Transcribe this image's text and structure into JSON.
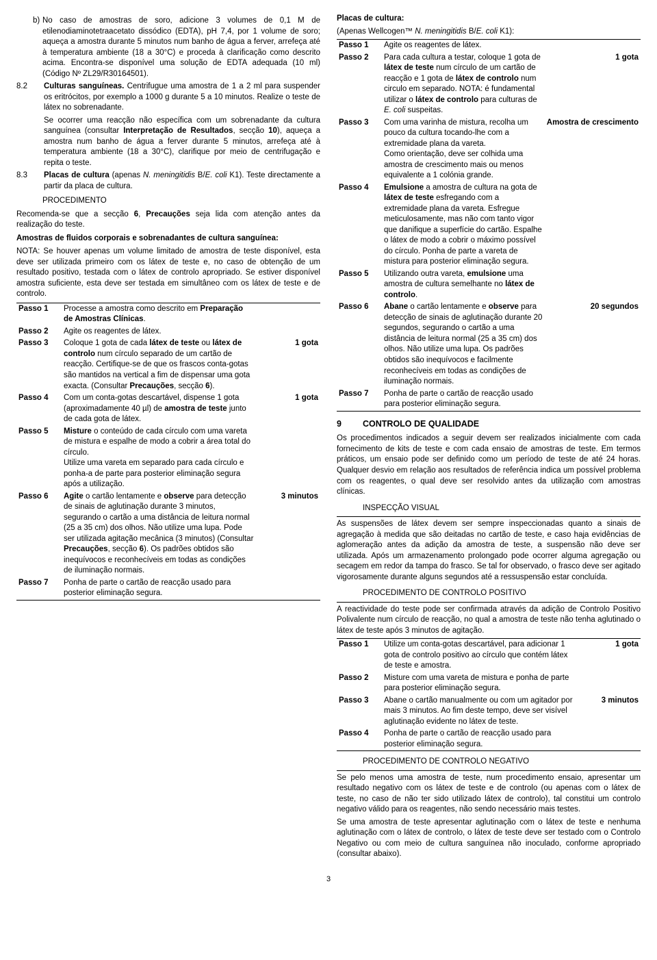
{
  "leftCol": {
    "itemB": {
      "letter": "b)",
      "text": "No caso de amostras de soro, adicione 3 volumes de 0,1 M de etilenodiaminotetraacetato dissódico (EDTA), pH 7,4, por 1 volume de soro; aqueça a amostra durante 5 minutos num banho de água a ferver, arrefeça até à temperatura ambiente (18 a 30°C) e proceda à clarificação como descrito acima. Encontra-se disponível uma solução de EDTA adequada (10 ml) (Código Nº ZL29/R30164501)."
    },
    "s82": {
      "num": "8.2",
      "title": "Culturas sanguíneas.",
      "text": " Centrifugue uma amostra de 1 a 2 ml para suspender os eritrócitos, por exemplo a 1000 g durante 5 a 10 minutos. Realize o teste de látex no sobrenadante."
    },
    "s82p2": "Se ocorrer uma reacção não específica com um sobrenadante da cultura sanguínea (consultar Interpretação de Resultados, secção 10), aqueça a amostra num banho de água a ferver durante 5 minutos, arrefeça até à temperatura ambiente (18 a 30°C), clarifique por meio de centrifugação e repita o teste.",
    "s82p2bold1": "Interpretação de Resultados",
    "s82p2bold2": "10",
    "s83": {
      "num": "8.3",
      "pre": "Placas de cultura",
      "mid": " (apenas ",
      "ital": "N. meningitidis",
      "midB": " B/",
      "ital2": "E. coli",
      "post": " K1). Teste directamente a partir da placa de cultura."
    },
    "proc": "PROCEDIMENTO",
    "recom": "Recomenda-se que a secção 6, Precauções seja lida com atenção antes da realização do teste.",
    "recomB1": "6",
    "recomB2": "Precauções",
    "amostrasHead": "Amostras de fluidos corporais e sobrenadantes de cultura sanguínea:",
    "nota": "NOTA: Se houver apenas um volume limitado de amostra de teste disponível, esta deve ser utilizada primeiro com os látex de teste e, no caso de obtenção de um resultado positivo, testada com o látex de controlo apropriado. Se estiver disponível amostra suficiente, esta deve ser testada em simultâneo com os látex de teste e de controlo.",
    "steps": [
      {
        "label": "Passo 1",
        "text": "Processe a amostra como descrito em ",
        "bold": "Preparação de Amostras Clínicas",
        "post": ".",
        "amount": ""
      },
      {
        "label": "Passo 2",
        "text": "Agite os reagentes de látex.",
        "amount": ""
      },
      {
        "label": "Passo 3",
        "pre": "Coloque 1 gota de cada ",
        "b1": "látex de teste",
        "mid": " ou ",
        "b2": "látex de controlo",
        "post": " num círculo separado de um cartão de reacção. Certifique-se de que os frascos conta-gotas são mantidos na vertical a fim de dispensar uma gota exacta. (Consultar ",
        "b3": "Precauções",
        "post2": ", secção ",
        "b4": "6",
        "post3": ").",
        "amount": "1 gota"
      },
      {
        "label": "Passo 4",
        "pre": "Com um conta-gotas descartável, dispense 1 gota (aproximadamente 40 µl) de ",
        "b1": "amostra de teste",
        "post": " junto de cada gota de látex.",
        "amount": "1 gota"
      },
      {
        "label": "Passo 5",
        "b1": "Misture",
        "post": " o conteúdo de cada círculo com uma vareta de mistura e espalhe de modo a cobrir a área total do círculo.",
        "line2": "Utilize uma vareta em separado para cada círculo e ponha-a de parte para posterior eliminação segura após a utilização.",
        "amount": ""
      },
      {
        "label": "Passo 6",
        "b1": "Agite",
        "mid": " o cartão lentamente e ",
        "b2": "observe",
        "post": " para detecção de sinais de aglutinação durante 3 minutos, segurando o cartão a uma distância de leitura normal (25 a 35 cm) dos olhos. Não utilize uma lupa. Pode ser utilizada agitação mecânica (3 minutos) (Consultar ",
        "b3": "Precauções",
        "post2": ", secção ",
        "b4": "6",
        "post3": "). Os padrões obtidos são inequívocos e reconhecíveis em todas as condições de iluminação normais.",
        "amount": "3 minutos"
      },
      {
        "label": "Passo 7",
        "text": "Ponha de parte o cartão de reacção usado para posterior eliminação segura.",
        "amount": ""
      }
    ]
  },
  "rightCol": {
    "placasHead": "Placas de cultura:",
    "apenas": "(Apenas Wellcogen™ ",
    "ital1": "N. meningitidis",
    "apMid": " B/",
    "ital2": "E. coli",
    "apEnd": " K1):",
    "steps": [
      {
        "label": "Passo 1",
        "text": "Agite os reagentes de látex.",
        "amount": ""
      },
      {
        "label": "Passo 2",
        "pre": "Para cada cultura a testar, coloque 1 gota de ",
        "b1": "látex de teste",
        "mid": " num círculo de um cartão de reacção e 1 gota de ",
        "b2": "látex de controlo",
        "post": " num circulo em separado. NOTA: é fundamental utilizar o ",
        "b3": "látex de controlo",
        "post2": " para culturas de ",
        "ital": "E. coli",
        "post3": " suspeitas.",
        "amount": "1 gota"
      },
      {
        "label": "Passo 3",
        "pre": "Com uma varinha de mistura, recolha um pouco da cultura tocando-lhe com a extremidade plana da vareta.",
        "line2": "Como orientação, deve ser colhida uma amostra de crescimento mais ou menos equivalente a 1 colónia grande.",
        "amount": "Amostra de crescimento"
      },
      {
        "label": "Passo 4",
        "b1": "Emulsione",
        "mid": " a amostra de cultura na gota de ",
        "b2": "látex de teste",
        "post": " esfregando com a extremidade plana da vareta. Esfregue meticulosamente, mas não com tanto vigor que danifique a superfície do cartão. Espalhe o látex de modo a cobrir o máximo possível do círculo. Ponha de parte a vareta de mistura para posterior eliminação segura.",
        "amount": ""
      },
      {
        "label": "Passo 5",
        "pre": "Utilizando outra vareta, ",
        "b1": "emulsione",
        "post": " uma amostra de cultura semelhante no ",
        "b2": "látex de controlo",
        "post2": ".",
        "amount": ""
      },
      {
        "label": "Passo 6",
        "b1": "Abane",
        "mid": " o cartão lentamente e ",
        "b2": "observe",
        "post": " para detecção de sinais de aglutinação durante 20 segundos, segurando o cartão a uma distância de leitura normal (25 a 35 cm) dos olhos. Não utilize uma lupa. Os padrões obtidos são inequívocos e facilmente reconhecíveis em todas as condições de iluminação normais.",
        "amount": "20 segundos"
      },
      {
        "label": "Passo 7",
        "text": "Ponha de parte o cartão de reacção usado para posterior eliminação segura.",
        "amount": ""
      }
    ],
    "h9": {
      "num": "9",
      "title": "CONTROLO DE QUALIDADE"
    },
    "h9p": "Os procedimentos indicados a seguir devem ser realizados inicialmente com cada fornecimento de kits de teste e com cada ensaio de amostras de teste. Em termos práticos, um ensaio pode ser definido como um período de teste de até 24 horas. Qualquer desvio em relação aos resultados de referência indica um possível problema com os reagentes, o qual deve ser resolvido antes da utilização com amostras clínicas.",
    "inspHead": "INSPECÇÃO VISUAL",
    "inspP": "As suspensões de látex devem ser sempre inspeccionadas quanto a sinais de agregação à medida que são deitadas no cartão de teste, e caso haja evidências de aglomeração antes da adição da amostra de teste, a suspensão não deve ser utilizada. Após um armazenamento prolongado pode ocorrer alguma agregação ou secagem em redor da tampa do frasco. Se tal for observado, o frasco deve ser agitado vigorosamente durante alguns segundos até a ressuspensão estar concluída.",
    "posHead": "PROCEDIMENTO DE CONTROLO POSITIVO",
    "posP": "A reactividade do teste pode ser confirmada através da adição de Controlo Positivo Polivalente num círculo de reacção, no qual a amostra de teste não tenha aglutinado o látex de teste após 3 minutos de agitação.",
    "posSteps": [
      {
        "label": "Passo 1",
        "text": "Utilize um conta-gotas descartável, para adicionar 1 gota de controlo positivo ao círculo que contém látex de teste e amostra.",
        "amount": "1 gota"
      },
      {
        "label": "Passo 2",
        "text": "Misture com uma vareta de mistura e ponha de parte para posterior eliminação segura.",
        "amount": ""
      },
      {
        "label": "Passo 3",
        "text": "Abane o cartão manualmente ou com um agitador por mais 3 minutos. Ao fim deste tempo, deve ser visível aglutinação evidente no látex de teste.",
        "amount": "3 minutos"
      },
      {
        "label": "Passo 4",
        "text": "Ponha de parte o cartão de reacção usado para posterior eliminação segura.",
        "amount": ""
      }
    ],
    "negHead": "PROCEDIMENTO DE CONTROLO NEGATIVO",
    "negP1": "Se pelo menos uma amostra de teste, num procedimento ensaio, apresentar um resultado negativo com os látex de teste e de controlo (ou apenas com o látex de teste, no caso de não ter sido utilizado látex de controlo), tal constitui um controlo negativo válido para os reagentes, não sendo necessário mais testes.",
    "negP2": "Se uma amostra de teste apresentar aglutinação com o látex de teste e nenhuma aglutinação com o látex de controlo, o látex de teste deve ser testado com o Controlo Negativo ou com meio de cultura sanguínea não inoculado, conforme apropriado (consultar abaixo)."
  },
  "pageNum": "3"
}
